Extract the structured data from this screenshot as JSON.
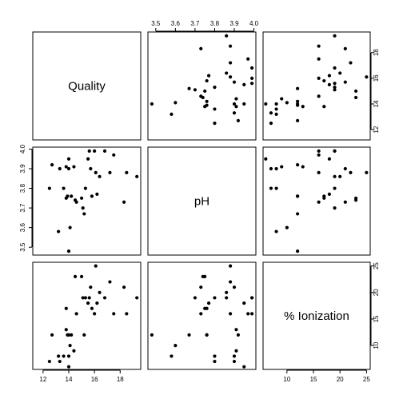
{
  "chart_data": {
    "type": "scatter",
    "variables": [
      {
        "name": "Quality",
        "range": [
          11.2,
          19.6
        ],
        "ticks": [
          12,
          14,
          16,
          18
        ],
        "tick_labels": [
          "12",
          "14",
          "16",
          "18"
        ]
      },
      {
        "name": "pH",
        "range": [
          3.46,
          4.01
        ],
        "ticks": [
          3.5,
          3.6,
          3.7,
          3.8,
          3.9,
          4.0
        ],
        "tick_labels": [
          "3.5",
          "3.6",
          "3.7",
          "3.8",
          "3.9",
          "4.0"
        ]
      },
      {
        "name": "% Ionization",
        "range": [
          5.5,
          25.7
        ],
        "ticks": [
          10,
          15,
          20,
          25
        ],
        "tick_labels": [
          "10",
          "15",
          "20",
          "25"
        ]
      }
    ],
    "observations": {
      "quality": [
        14.0,
        12.5,
        12.7,
        13.2,
        13.3,
        13.6,
        13.8,
        13.8,
        13.9,
        14.0,
        14.0,
        14.1,
        14.2,
        14.4,
        14.5,
        14.6,
        15.0,
        15.1,
        15.2,
        15.3,
        15.5,
        15.6,
        15.7,
        15.8,
        16.0,
        16.1,
        16.2,
        16.4,
        16.8,
        17.2,
        17.5,
        18.3,
        18.5,
        19.3
      ],
      "ph": [
        3.48,
        3.8,
        3.92,
        3.58,
        3.9,
        3.8,
        3.75,
        3.91,
        3.76,
        3.9,
        3.95,
        3.6,
        3.76,
        3.91,
        3.74,
        3.73,
        3.75,
        3.7,
        3.67,
        3.8,
        3.95,
        3.99,
        3.9,
        3.76,
        3.99,
        3.88,
        3.77,
        3.86,
        3.99,
        3.88,
        3.97,
        3.73,
        3.88,
        3.86
      ],
      "ionization": [
        12.0,
        7.0,
        12.0,
        8.0,
        7.0,
        8.0,
        17.0,
        13.0,
        12.0,
        8.0,
        6.0,
        10.0,
        12.0,
        9.0,
        23.0,
        16.0,
        23.0,
        19.0,
        12.0,
        19.0,
        18.0,
        19.0,
        21.0,
        17.0,
        16.0,
        25.0,
        18.0,
        20.0,
        19.0,
        22.0,
        16.0,
        21.0,
        16.0,
        19.0
      ]
    },
    "xlabel": "",
    "ylabel": "",
    "grid": false
  }
}
